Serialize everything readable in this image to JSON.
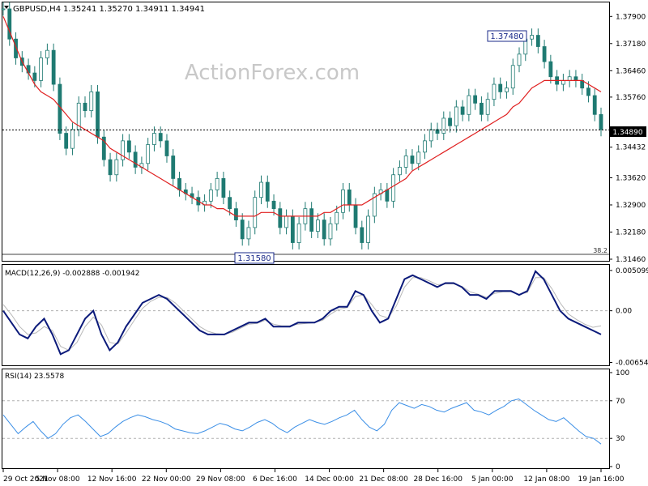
{
  "header": {
    "symbol": "GBPUSD,H4",
    "ohlc": "1.35241 1.35270 1.34911 1.34941"
  },
  "watermark": "ActionForex.com",
  "colors": {
    "candle": "#1f7a72",
    "ma": "#e02020",
    "macd_line": "#0b1a7a",
    "macd_signal": "#b8b8b8",
    "rsi": "#3a8ee6",
    "grid_dash": "#b0b0b0",
    "frame": "#000000"
  },
  "chart_data": [
    {
      "type": "line",
      "panel": "price",
      "y_ticks": [
        "1.37900",
        "1.37180",
        "1.36460",
        "1.35760",
        "1.34432",
        "1.33620",
        "1.32900",
        "1.32180",
        "1.31460"
      ],
      "ylim": [
        1.3146,
        1.3825
      ],
      "x_ticks": [
        "29 Oct 2021",
        "5 Nov 08:00",
        "12 Nov 16:00",
        "22 Nov 00:00",
        "29 Nov 08:00",
        "6 Dec 16:00",
        "14 Dec 00:00",
        "21 Dec 08:00",
        "28 Dec 16:00",
        "5 Jan 00:00",
        "12 Jan 08:00",
        "19 Jan 16:00"
      ],
      "annotations": {
        "high_label": "1.37480",
        "low_label": "1.31580",
        "current_price": "1.34890",
        "fib_label": "38.2"
      },
      "series": [
        {
          "kind": "price_close",
          "values": [
            1.381,
            1.373,
            1.368,
            1.366,
            1.364,
            1.362,
            1.368,
            1.37,
            1.361,
            1.348,
            1.344,
            1.349,
            1.356,
            1.354,
            1.359,
            1.347,
            1.341,
            1.337,
            1.341,
            1.346,
            1.343,
            1.339,
            1.34,
            1.345,
            1.348,
            1.346,
            1.342,
            1.336,
            1.333,
            1.332,
            1.331,
            1.329,
            1.33,
            1.333,
            1.336,
            1.331,
            1.328,
            1.325,
            1.32,
            1.323,
            1.331,
            1.335,
            1.33,
            1.328,
            1.323,
            1.326,
            1.319,
            1.324,
            1.328,
            1.322,
            1.325,
            1.32,
            1.324,
            1.327,
            1.333,
            1.329,
            1.323,
            1.319,
            1.326,
            1.332,
            1.333,
            1.33,
            1.337,
            1.339,
            1.342,
            1.34,
            1.343,
            1.346,
            1.349,
            1.348,
            1.352,
            1.35,
            1.355,
            1.353,
            1.358,
            1.356,
            1.353,
            1.357,
            1.361,
            1.359,
            1.36,
            1.366,
            1.369,
            1.373,
            1.374,
            1.371,
            1.367,
            1.363,
            1.361,
            1.362,
            1.363,
            1.362,
            1.36,
            1.358,
            1.353,
            1.349
          ]
        },
        {
          "kind": "moving_average",
          "values": [
            1.379,
            1.375,
            1.371,
            1.367,
            1.364,
            1.361,
            1.359,
            1.358,
            1.357,
            1.355,
            1.353,
            1.351,
            1.35,
            1.349,
            1.348,
            1.347,
            1.346,
            1.344,
            1.343,
            1.342,
            1.341,
            1.34,
            1.339,
            1.338,
            1.337,
            1.336,
            1.335,
            1.334,
            1.333,
            1.332,
            1.331,
            1.33,
            1.329,
            1.329,
            1.328,
            1.328,
            1.327,
            1.326,
            1.326,
            1.326,
            1.326,
            1.327,
            1.327,
            1.327,
            1.326,
            1.326,
            1.326,
            1.326,
            1.326,
            1.326,
            1.326,
            1.327,
            1.327,
            1.328,
            1.329,
            1.329,
            1.329,
            1.329,
            1.33,
            1.331,
            1.332,
            1.333,
            1.334,
            1.335,
            1.336,
            1.338,
            1.339,
            1.34,
            1.341,
            1.342,
            1.343,
            1.344,
            1.345,
            1.346,
            1.347,
            1.348,
            1.349,
            1.35,
            1.351,
            1.352,
            1.353,
            1.355,
            1.356,
            1.358,
            1.36,
            1.361,
            1.362,
            1.362,
            1.362,
            1.362,
            1.362,
            1.362,
            1.362,
            1.361,
            1.36,
            1.359
          ]
        }
      ]
    },
    {
      "type": "line",
      "panel": "macd",
      "title": "MACD(12,26,9) -0.002888 -0.001942",
      "y_ticks": [
        "0.005099",
        "0.00",
        "-0.006543"
      ],
      "ylim": [
        -0.0068,
        0.0055
      ],
      "series": [
        {
          "kind": "macd",
          "values": [
            0.0,
            -0.0015,
            -0.003,
            -0.0035,
            -0.002,
            -0.001,
            -0.003,
            -0.0055,
            -0.005,
            -0.003,
            -0.001,
            0.0,
            -0.003,
            -0.005,
            -0.004,
            -0.002,
            -0.0005,
            0.001,
            0.0015,
            0.002,
            0.0015,
            0.0005,
            -0.0005,
            -0.0015,
            -0.0025,
            -0.003,
            -0.003,
            -0.003,
            -0.0025,
            -0.002,
            -0.0015,
            -0.0015,
            -0.001,
            -0.002,
            -0.002,
            -0.002,
            -0.0015,
            -0.0015,
            -0.0015,
            -0.001,
            0.0,
            0.0005,
            0.0005,
            0.0025,
            0.002,
            0.0,
            -0.0015,
            -0.001,
            0.0015,
            0.004,
            0.0045,
            0.004,
            0.0035,
            0.003,
            0.0035,
            0.0035,
            0.003,
            0.002,
            0.002,
            0.0015,
            0.0025,
            0.0025,
            0.0025,
            0.002,
            0.0025,
            0.005,
            0.004,
            0.002,
            0.0,
            -0.001,
            -0.0015,
            -0.002,
            -0.0025,
            -0.003
          ]
        },
        {
          "kind": "signal",
          "values": [
            0.0008,
            -0.0005,
            -0.002,
            -0.003,
            -0.0028,
            -0.002,
            -0.0025,
            -0.0045,
            -0.005,
            -0.004,
            -0.002,
            -0.0008,
            -0.0018,
            -0.004,
            -0.0042,
            -0.0028,
            -0.0012,
            0.0003,
            0.0012,
            0.0017,
            0.0017,
            0.001,
            0.0,
            -0.001,
            -0.002,
            -0.0026,
            -0.0029,
            -0.003,
            -0.0027,
            -0.0022,
            -0.0017,
            -0.0016,
            -0.0012,
            -0.0017,
            -0.0019,
            -0.0019,
            -0.0017,
            -0.0016,
            -0.0015,
            -0.0012,
            -0.0004,
            0.0002,
            0.0004,
            0.0018,
            0.002,
            0.0008,
            -0.0006,
            -0.0009,
            0.0006,
            0.003,
            0.0042,
            0.0042,
            0.0038,
            0.0033,
            0.0034,
            0.0034,
            0.0031,
            0.0024,
            0.0021,
            0.0017,
            0.0022,
            0.0024,
            0.0024,
            0.0021,
            0.0023,
            0.0042,
            0.0042,
            0.0028,
            0.001,
            -0.0004,
            -0.0011,
            -0.0017,
            -0.0021,
            -0.0019
          ]
        }
      ]
    },
    {
      "type": "line",
      "panel": "rsi",
      "title": "RSI(14) 23.5578",
      "y_ticks": [
        "100",
        "70",
        "30",
        "0"
      ],
      "ylim": [
        0,
        100
      ],
      "levels": [
        70,
        30
      ],
      "series": [
        {
          "kind": "rsi",
          "values": [
            55,
            45,
            35,
            42,
            48,
            38,
            30,
            35,
            45,
            52,
            55,
            48,
            40,
            32,
            35,
            42,
            48,
            52,
            55,
            53,
            50,
            48,
            45,
            40,
            38,
            36,
            35,
            38,
            42,
            46,
            44,
            40,
            38,
            42,
            47,
            50,
            46,
            40,
            36,
            42,
            46,
            50,
            47,
            45,
            48,
            52,
            55,
            60,
            50,
            42,
            38,
            45,
            60,
            68,
            65,
            62,
            66,
            64,
            60,
            58,
            62,
            65,
            68,
            60,
            58,
            55,
            60,
            64,
            70,
            72,
            66,
            60,
            55,
            50,
            48,
            52,
            45,
            38,
            32,
            30,
            24
          ]
        }
      ]
    }
  ]
}
